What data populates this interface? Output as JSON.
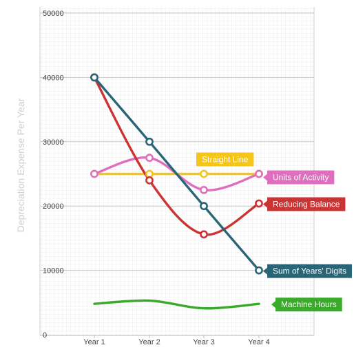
{
  "chart_data": {
    "type": "line",
    "title": "",
    "xlabel": "",
    "ylabel": "Depreciation Expense Per Year",
    "categories": [
      "Year 1",
      "Year 2",
      "Year 3",
      "Year 4"
    ],
    "ylim": [
      0,
      50000
    ],
    "yticks": [
      "0",
      "10000",
      "20000",
      "30000",
      "40000",
      "50000"
    ],
    "grid": true,
    "smooth": true,
    "series": [
      {
        "name": "Straight Line",
        "color": "#f5c518",
        "values": [
          25000,
          25000,
          25000,
          25000
        ]
      },
      {
        "name": "Units of Activity",
        "color": "#de6fbf",
        "values": [
          25000,
          27500,
          22500,
          25000
        ]
      },
      {
        "name": "Reducing Balance",
        "color": "#cc3333",
        "values": [
          40000,
          24000,
          15600,
          20400
        ]
      },
      {
        "name": "Sum of Years' Digits",
        "color": "#2a6577",
        "values": [
          40000,
          30000,
          20000,
          10000
        ]
      },
      {
        "name": "Machine Hours",
        "color": "#3aaa2a",
        "values": [
          4800,
          5300,
          4100,
          4800
        ]
      }
    ]
  }
}
